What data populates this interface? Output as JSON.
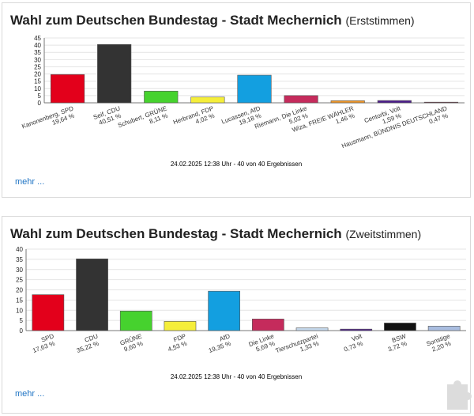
{
  "colors": {
    "accent_link": "#1f74c4",
    "bar_outline": "#555555"
  },
  "panels": [
    {
      "title": "Wahl zum Deutschen Bundestag - Stadt Mechernich",
      "subtitle": "(Erststimmen)",
      "timestamp": "24.02.2025 12:38 Uhr - 40 von 40 Ergebnissen",
      "more_label": "mehr ..."
    },
    {
      "title": "Wahl zum Deutschen Bundestag - Stadt Mechernich",
      "subtitle": "(Zweitstimmen)",
      "timestamp": "24.02.2025 12:38 Uhr - 40 von 40 Ergebnissen",
      "more_label": "mehr ..."
    }
  ],
  "chart_data": [
    {
      "type": "bar",
      "ylim": [
        0,
        45
      ],
      "yticks": [
        0,
        5,
        10,
        15,
        20,
        25,
        30,
        35,
        40,
        45
      ],
      "grid": true,
      "categories": [
        "Kanonenberg, SPD",
        "Seif, CDU",
        "Schubert, GRÜNE",
        "Herbrand, FDP",
        "Lucassen, AfD",
        "Riemann, Die Linke",
        "Wiza, FREIE WÄHLER",
        "Centorbi, Volt",
        "Hausmann, BÜNDNIS DEUTSCHLAND"
      ],
      "values": [
        19.64,
        40.51,
        8.11,
        4.02,
        19.18,
        5.02,
        1.46,
        1.59,
        0.47
      ],
      "value_labels": [
        "19,64 %",
        "40,51 %",
        "8,11 %",
        "4,02 %",
        "19,18 %",
        "5,02 %",
        "1,46 %",
        "1,59 %",
        "0,47 %"
      ],
      "colors": [
        "#e3001b",
        "#333333",
        "#46d22e",
        "#f5ee3a",
        "#139fe0",
        "#c52b5c",
        "#f29a2c",
        "#4d1d8c",
        "#7e1f3a"
      ]
    },
    {
      "type": "bar",
      "ylim": [
        0,
        40
      ],
      "yticks": [
        0,
        5,
        10,
        15,
        20,
        25,
        30,
        35,
        40
      ],
      "grid": true,
      "categories": [
        "SPD",
        "CDU",
        "GRÜNE",
        "FDP",
        "AfD",
        "Die Linke",
        "Tierschutzpartei",
        "Volt",
        "BSW",
        "Sonstige"
      ],
      "values": [
        17.63,
        35.22,
        9.6,
        4.53,
        19.35,
        5.69,
        1.33,
        0.73,
        3.72,
        2.2
      ],
      "value_labels": [
        "17,63 %",
        "35,22 %",
        "9,60 %",
        "4,53 %",
        "19,35 %",
        "5,69 %",
        "1,33 %",
        "0,73 %",
        "3,72 %",
        "2,20 %"
      ],
      "colors": [
        "#e3001b",
        "#333333",
        "#46d22e",
        "#f5ee3a",
        "#139fe0",
        "#c52b5c",
        "#c5d8ec",
        "#4d1d8c",
        "#111111",
        "#a9bde0"
      ]
    }
  ]
}
